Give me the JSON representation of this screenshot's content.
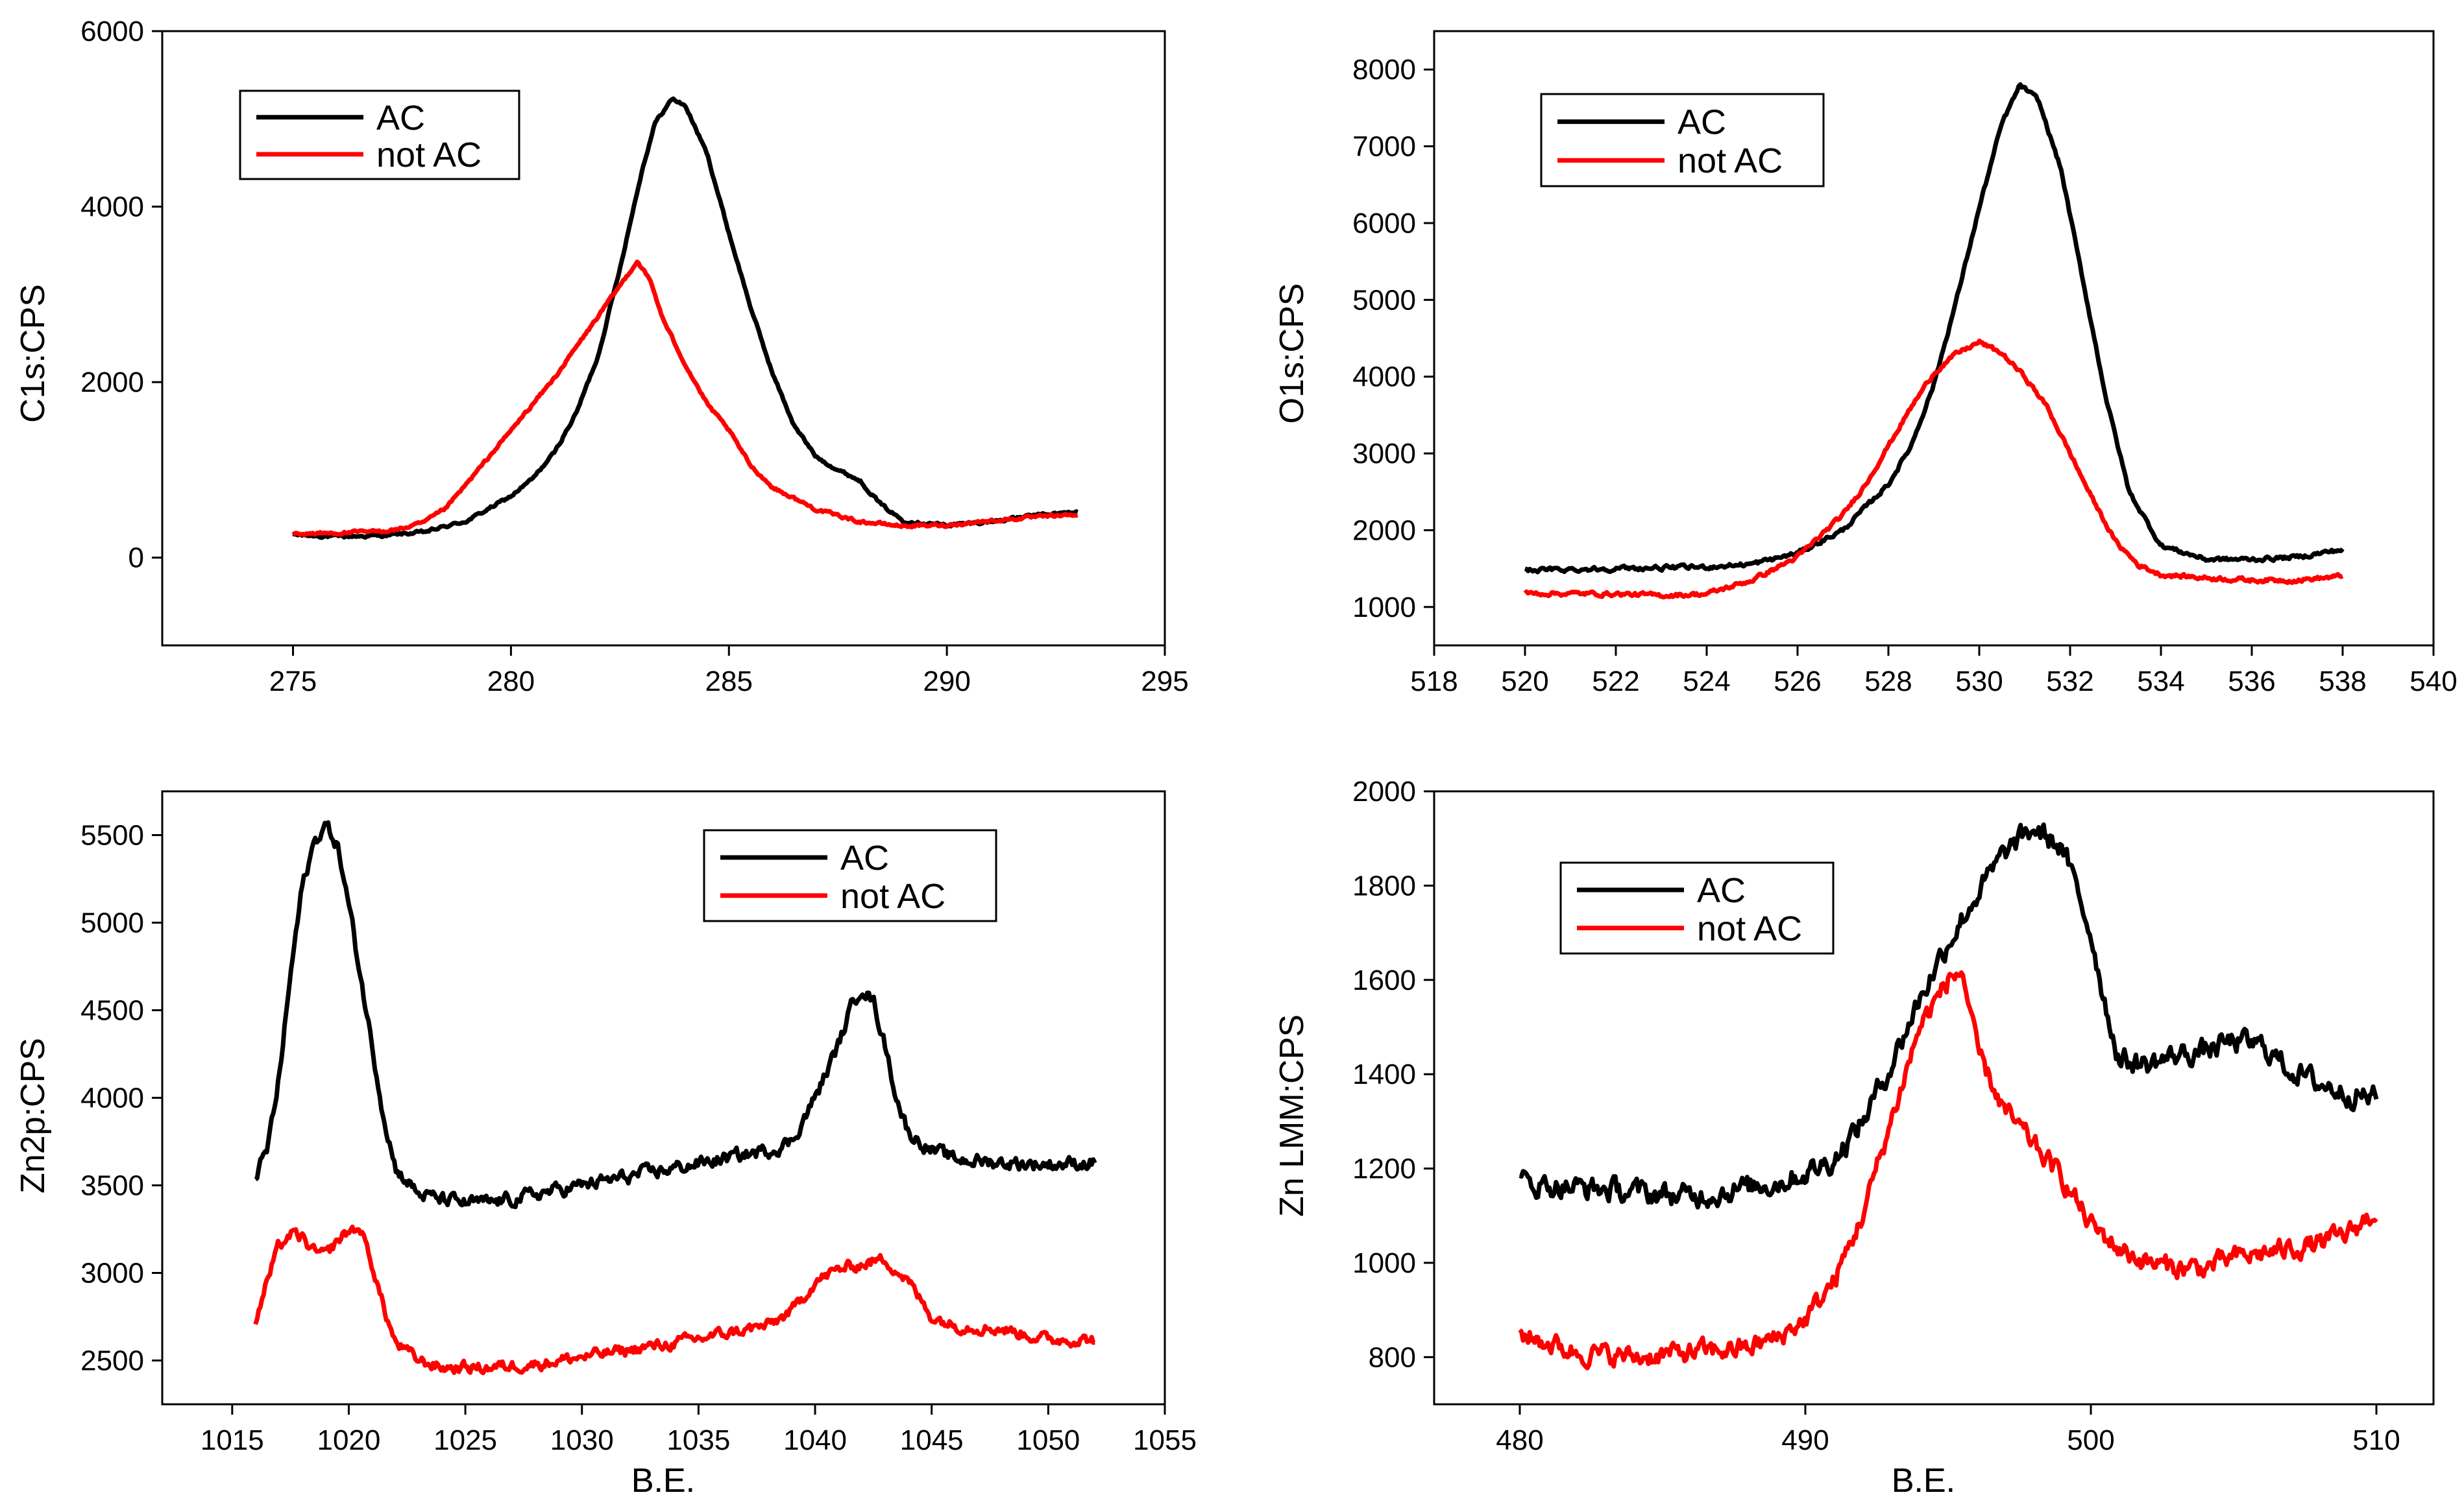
{
  "colors": {
    "ac": "#000000",
    "not_ac": "#ff0000",
    "axis": "#000000",
    "background": "#ffffff"
  },
  "chart_data": [
    {
      "id": "c1s",
      "type": "line",
      "title": "",
      "xlabel": "B.E.",
      "ylabel": "C1s:CPS",
      "xlim": [
        272,
        295
      ],
      "ylim": [
        -1000,
        6000
      ],
      "xticks": [
        275,
        280,
        285,
        290,
        295
      ],
      "yticks": [
        0,
        2000,
        4000,
        6000
      ],
      "legend": {
        "position": "top-left",
        "entries": [
          "AC",
          "not AC"
        ]
      },
      "series": [
        {
          "name": "AC",
          "color": "#000000",
          "noise": 15,
          "x": [
            275,
            276,
            277,
            278,
            279,
            280,
            280.5,
            281,
            281.5,
            282,
            282.5,
            283,
            283.3,
            283.7,
            284,
            284.5,
            285,
            285.5,
            286,
            286.5,
            287,
            287.5,
            288,
            288.5,
            289,
            290,
            291,
            292,
            293
          ],
          "values": [
            260,
            240,
            250,
            290,
            420,
            700,
            900,
            1200,
            1650,
            2300,
            3300,
            4400,
            4950,
            5230,
            5150,
            4600,
            3700,
            2850,
            2100,
            1500,
            1150,
            1000,
            880,
            600,
            420,
            370,
            410,
            480,
            520
          ]
        },
        {
          "name": "not AC",
          "color": "#ff0000",
          "noise": 15,
          "x": [
            275,
            276,
            277,
            277.5,
            278,
            278.5,
            279,
            279.5,
            280,
            280.5,
            281,
            281.5,
            282,
            282.5,
            282.9,
            283.2,
            283.5,
            284,
            284.5,
            285,
            285.5,
            286,
            287,
            288,
            289,
            290,
            291,
            292,
            293
          ],
          "values": [
            270,
            280,
            300,
            330,
            400,
            560,
            850,
            1150,
            1450,
            1750,
            2050,
            2400,
            2750,
            3100,
            3380,
            3150,
            2700,
            2200,
            1750,
            1450,
            1050,
            800,
            550,
            410,
            360,
            370,
            420,
            460,
            490
          ]
        }
      ]
    },
    {
      "id": "o1s",
      "type": "line",
      "title": "",
      "xlabel": "B.E.",
      "ylabel": "O1s:CPS",
      "xlim": [
        518,
        540
      ],
      "ylim": [
        500,
        8500
      ],
      "xticks": [
        518,
        520,
        522,
        524,
        526,
        528,
        530,
        532,
        534,
        536,
        538,
        540
      ],
      "yticks": [
        1000,
        2000,
        3000,
        4000,
        5000,
        6000,
        7000,
        8000
      ],
      "legend": {
        "position": "top-left",
        "entries": [
          "AC",
          "not AC"
        ]
      },
      "series": [
        {
          "name": "AC",
          "color": "#000000",
          "noise": 25,
          "x": [
            520,
            522,
            524,
            525,
            526,
            527,
            528,
            528.5,
            529,
            529.5,
            530,
            530.5,
            530.9,
            531.3,
            531.8,
            532.3,
            532.8,
            533.3,
            534,
            535,
            536,
            537,
            538
          ],
          "values": [
            1480,
            1500,
            1520,
            1560,
            1700,
            2000,
            2600,
            3100,
            3900,
            5000,
            6200,
            7300,
            7800,
            7600,
            6700,
            5200,
            3700,
            2500,
            1800,
            1620,
            1620,
            1650,
            1750
          ]
        },
        {
          "name": "not AC",
          "color": "#ff0000",
          "noise": 25,
          "x": [
            520,
            522,
            523,
            524,
            525,
            526,
            527,
            527.5,
            528,
            528.5,
            529,
            529.5,
            530,
            530.5,
            531,
            531.5,
            532,
            532.5,
            533,
            533.5,
            534,
            535,
            536,
            537,
            538
          ],
          "values": [
            1180,
            1170,
            1150,
            1170,
            1350,
            1650,
            2200,
            2600,
            3100,
            3600,
            4050,
            4300,
            4450,
            4300,
            4000,
            3600,
            3000,
            2400,
            1850,
            1550,
            1420,
            1380,
            1350,
            1350,
            1400
          ]
        }
      ]
    },
    {
      "id": "zn2p",
      "type": "line",
      "title": "",
      "xlabel": "B.E.",
      "ylabel": "Zn2p:CPS",
      "xlim": [
        1012,
        1055
      ],
      "ylim": [
        2250,
        5750
      ],
      "xticks": [
        1015,
        1020,
        1025,
        1030,
        1035,
        1040,
        1045,
        1050,
        1055
      ],
      "yticks": [
        2500,
        3000,
        3500,
        4000,
        4500,
        5000,
        5500
      ],
      "legend": {
        "position": "top-right",
        "entries": [
          "AC",
          "not AC"
        ]
      },
      "series": [
        {
          "name": "AC",
          "color": "#000000",
          "noise": 35,
          "x": [
            1016,
            1016.5,
            1017,
            1017.5,
            1018,
            1018.5,
            1019,
            1019.5,
            1020,
            1020.5,
            1021,
            1021.5,
            1022,
            1023,
            1024,
            1025,
            1026,
            1027,
            1028,
            1030,
            1032,
            1034,
            1036,
            1038,
            1039,
            1040,
            1041,
            1041.5,
            1042,
            1042.5,
            1043,
            1043.5,
            1044,
            1045,
            1046,
            1048,
            1050,
            1052
          ],
          "values": [
            3560,
            3700,
            4100,
            4700,
            5200,
            5450,
            5560,
            5450,
            5100,
            4700,
            4300,
            3900,
            3600,
            3450,
            3420,
            3400,
            3400,
            3420,
            3450,
            3500,
            3550,
            3600,
            3650,
            3700,
            3750,
            4000,
            4300,
            4500,
            4640,
            4550,
            4300,
            4000,
            3800,
            3700,
            3650,
            3630,
            3620,
            3630
          ]
        },
        {
          "name": "not AC",
          "color": "#ff0000",
          "noise": 30,
          "x": [
            1016,
            1016.5,
            1017,
            1017.5,
            1018,
            1018.5,
            1019,
            1019.5,
            1020,
            1020.5,
            1021,
            1021.5,
            1022,
            1023,
            1024,
            1026,
            1028,
            1030,
            1032,
            1034,
            1036,
            1038,
            1039,
            1040,
            1041,
            1042,
            1043,
            1044,
            1045,
            1046,
            1048,
            1050,
            1052
          ],
          "values": [
            2720,
            2950,
            3150,
            3220,
            3200,
            3120,
            3100,
            3180,
            3240,
            3250,
            3050,
            2800,
            2600,
            2500,
            2460,
            2460,
            2480,
            2520,
            2560,
            2600,
            2650,
            2700,
            2780,
            2950,
            3020,
            3050,
            3080,
            2950,
            2750,
            2700,
            2680,
            2620,
            2620
          ]
        }
      ]
    },
    {
      "id": "znlmm",
      "type": "line",
      "title": "",
      "xlabel": "B.E.",
      "ylabel": "Zn LMM:CPS",
      "xlim": [
        477,
        512
      ],
      "ylim": [
        700,
        2000
      ],
      "xticks": [
        480,
        490,
        500,
        510
      ],
      "yticks": [
        800,
        1000,
        1200,
        1400,
        1600,
        1800,
        2000
      ],
      "legend": {
        "position": "top-left",
        "entries": [
          "AC",
          "not AC"
        ]
      },
      "series": [
        {
          "name": "AC",
          "color": "#000000",
          "noise": 22,
          "x": [
            480,
            482,
            484,
            486,
            488,
            489,
            490,
            491,
            492,
            493,
            494,
            495,
            496,
            497,
            498,
            499,
            500,
            500.5,
            501,
            502,
            503,
            504,
            505,
            506,
            507,
            508,
            509,
            510
          ],
          "values": [
            1170,
            1160,
            1150,
            1140,
            1160,
            1170,
            1190,
            1220,
            1300,
            1420,
            1560,
            1680,
            1780,
            1870,
            1920,
            1880,
            1700,
            1550,
            1430,
            1420,
            1440,
            1450,
            1470,
            1460,
            1410,
            1380,
            1360,
            1350
          ]
        },
        {
          "name": "not AC",
          "color": "#ff0000",
          "noise": 20,
          "x": [
            480,
            481,
            482,
            484,
            486,
            488,
            489,
            490,
            491,
            492,
            493,
            494,
            495,
            495.5,
            496,
            497,
            498,
            499,
            500,
            501,
            502,
            503,
            504,
            505,
            506,
            507,
            508,
            509,
            510
          ],
          "values": [
            850,
            830,
            810,
            800,
            810,
            820,
            840,
            880,
            960,
            1100,
            1300,
            1500,
            1600,
            1620,
            1450,
            1320,
            1250,
            1180,
            1080,
            1030,
            1000,
            990,
            990,
            1010,
            1020,
            1030,
            1040,
            1060,
            1110
          ]
        }
      ]
    }
  ]
}
